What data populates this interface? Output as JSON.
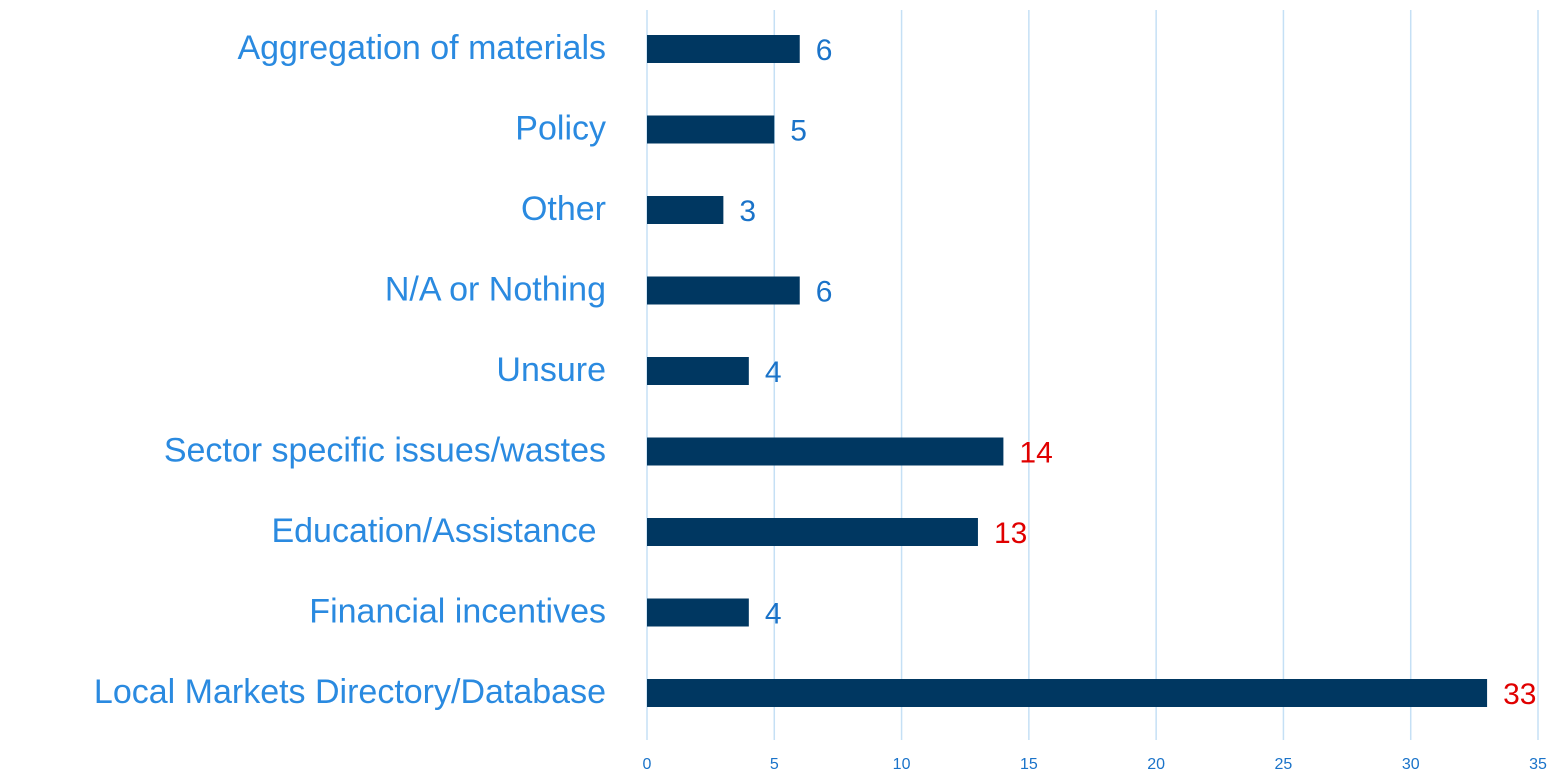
{
  "chart_data": {
    "type": "hbar",
    "categories": [
      "Aggregation of materials",
      "Policy",
      "Other",
      "N/A or Nothing",
      "Unsure",
      "Sector specific issues/wastes",
      "Education/Assistance ",
      "Financial incentives",
      "Local Markets Directory/Database"
    ],
    "values": [
      6,
      5,
      3,
      6,
      4,
      14,
      13,
      4,
      33
    ],
    "color": "#003761",
    "value_label_colors": [
      "#1a73c9",
      "#1a73c9",
      "#1a73c9",
      "#1a73c9",
      "#1a73c9",
      "#e00000",
      "#e00000",
      "#1a73c9",
      "#e00000"
    ],
    "xlim": [
      0,
      35
    ],
    "xticks": [
      0,
      5,
      10,
      15,
      20,
      25,
      30,
      35
    ],
    "grid": true
  }
}
